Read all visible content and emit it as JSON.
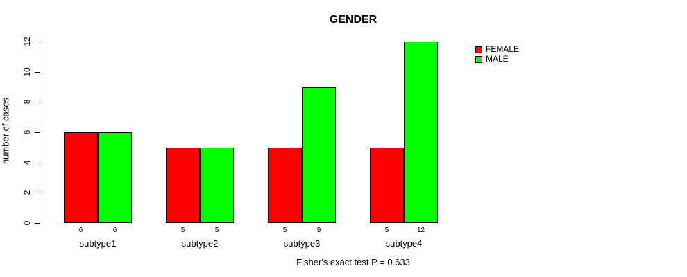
{
  "chart_data": {
    "type": "bar",
    "title": "GENDER",
    "ylabel": "number of cases",
    "xlabel": "",
    "caption": "Fisher's exact test P = 0.633",
    "categories": [
      "subtype1",
      "subtype2",
      "subtype3",
      "subtype4"
    ],
    "series": [
      {
        "name": "FEMALE",
        "color": "#ff0000",
        "values": [
          6,
          5,
          5,
          5
        ]
      },
      {
        "name": "MALE",
        "color": "#00ff00",
        "values": [
          6,
          5,
          9,
          12
        ]
      }
    ],
    "bar_value_labels": [
      [
        "6",
        "6"
      ],
      [
        "5",
        "5"
      ],
      [
        "5",
        "9"
      ],
      [
        "5",
        "12"
      ]
    ],
    "ylim": [
      0,
      12
    ],
    "yticks": [
      0,
      2,
      4,
      6,
      8,
      10,
      12
    ],
    "grid": false,
    "legend_position": "top-right",
    "bar_border_color": "#000000",
    "axis_color": "#000000",
    "background_color": "#ffffff"
  }
}
